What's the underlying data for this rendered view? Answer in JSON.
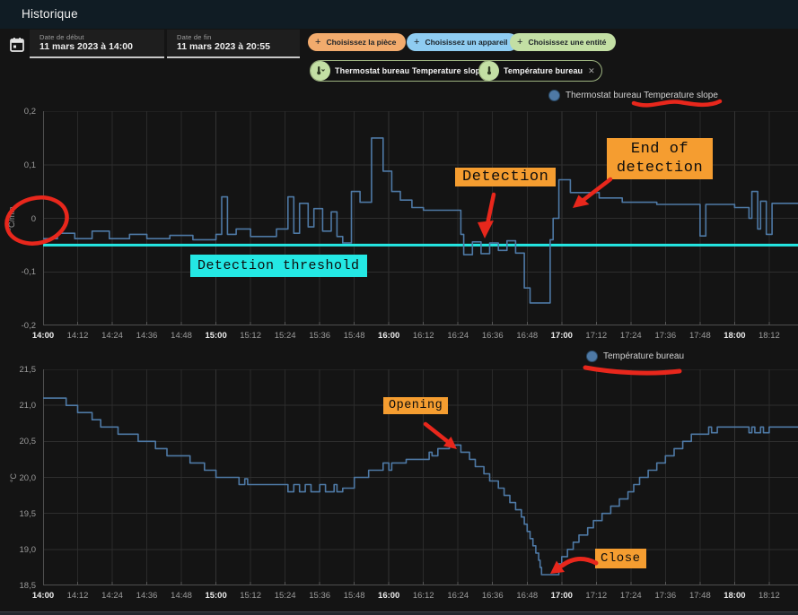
{
  "header": {
    "title": "Historique"
  },
  "toolbar": {
    "date_start": {
      "label": "Date de début",
      "value": "11 mars 2023 à 14:00"
    },
    "date_end": {
      "label": "Date de fin",
      "value": "11 mars 2023 à 20:55"
    },
    "filter_chips": [
      {
        "label": "Choisissez la pièce"
      },
      {
        "label": "Choisissez un appareil"
      },
      {
        "label": "Choisissez une entité"
      }
    ],
    "entity_chips": [
      {
        "label": "Thermostat bureau Temperature slope",
        "icon": "thermostat-icon"
      },
      {
        "label": "Température bureau",
        "icon": "thermometer-icon"
      }
    ]
  },
  "icons": {
    "plus_glyph": "+",
    "close_glyph": "✕"
  },
  "colors": {
    "accent_orange": "#f59d30",
    "accent_cyan": "#24e8e4",
    "accent_red": "#e8271c",
    "series_blue": "#4e79a5",
    "chip_room": "#f2ab6d",
    "chip_device": "#8fccf1",
    "chip_entity": "#c3dfa4"
  },
  "annotations": {
    "detection": "Detection",
    "end_of_detection": "End of detection",
    "detection_threshold": "Detection threshold",
    "opening": "Opening",
    "close": "Close"
  },
  "chart_data": [
    {
      "type": "line",
      "step": true,
      "legend_position": "top-right",
      "grid": true,
      "ylabel": "°C/min",
      "ylim": [
        -0.2,
        0.2
      ],
      "ytick_values": [
        0.2,
        0.1,
        0,
        -0.1,
        -0.2
      ],
      "ytick_labels": [
        "0,2",
        "0,1",
        "0",
        "-0,1",
        "-0,2"
      ],
      "x_minutes_range": [
        840,
        1102
      ],
      "xtick_step_minutes": 12,
      "xticks": [
        "14:00",
        "14:12",
        "14:24",
        "14:36",
        "14:48",
        "15:00",
        "15:12",
        "15:24",
        "15:36",
        "15:48",
        "16:00",
        "16:12",
        "16:24",
        "16:36",
        "16:48",
        "17:00",
        "17:12",
        "17:24",
        "17:36",
        "17:48",
        "18:00",
        "18:12"
      ],
      "threshold": -0.05,
      "threshold_color": "#24e8e4",
      "series": [
        {
          "name": "Thermostat bureau Temperature slope",
          "color": "#4e79a5",
          "points": [
            [
              840,
              -0.038
            ],
            [
              845,
              -0.028
            ],
            [
              851,
              -0.038
            ],
            [
              857,
              -0.024
            ],
            [
              863,
              -0.038
            ],
            [
              870,
              -0.03
            ],
            [
              876,
              -0.038
            ],
            [
              884,
              -0.032
            ],
            [
              892,
              -0.04
            ],
            [
              900,
              -0.03
            ],
            [
              902,
              0.04
            ],
            [
              904,
              -0.03
            ],
            [
              907,
              -0.02
            ],
            [
              912,
              -0.034
            ],
            [
              921,
              -0.02
            ],
            [
              925,
              0.04
            ],
            [
              927,
              -0.028
            ],
            [
              929,
              0.028
            ],
            [
              932,
              -0.016
            ],
            [
              934,
              0.018
            ],
            [
              937,
              -0.024
            ],
            [
              940,
              0.012
            ],
            [
              942,
              -0.034
            ],
            [
              944,
              -0.046
            ],
            [
              947,
              0.05
            ],
            [
              950,
              0.03
            ],
            [
              954,
              0.15
            ],
            [
              958,
              0.088
            ],
            [
              961,
              0.05
            ],
            [
              964,
              0.034
            ],
            [
              968,
              0.02
            ],
            [
              972,
              0.015
            ],
            [
              985,
              -0.03
            ],
            [
              986,
              -0.068
            ],
            [
              989,
              -0.044
            ],
            [
              992,
              -0.066
            ],
            [
              995,
              -0.046
            ],
            [
              998,
              -0.06
            ],
            [
              1001,
              -0.042
            ],
            [
              1004,
              -0.065
            ],
            [
              1007,
              -0.13
            ],
            [
              1009,
              -0.158
            ],
            [
              1016,
              -0.04
            ],
            [
              1017,
              0
            ],
            [
              1019,
              0.072
            ],
            [
              1023,
              0.048
            ],
            [
              1033,
              0.038
            ],
            [
              1041,
              0.03
            ],
            [
              1053,
              0.026
            ],
            [
              1068,
              -0.033
            ],
            [
              1070,
              0.026
            ],
            [
              1080,
              0.02
            ],
            [
              1085,
              0
            ],
            [
              1086,
              0.05
            ],
            [
              1088,
              -0.02
            ],
            [
              1089,
              0.032
            ],
            [
              1091,
              -0.03
            ],
            [
              1093,
              0.028
            ],
            [
              1102,
              0.028
            ]
          ]
        }
      ]
    },
    {
      "type": "line",
      "step": true,
      "legend_position": "top-right",
      "grid": true,
      "ylabel": "°C",
      "ylim": [
        18.5,
        21.5
      ],
      "ytick_values": [
        21.5,
        21.0,
        20.5,
        20.0,
        19.5,
        19.0,
        18.5
      ],
      "ytick_labels": [
        "21,5",
        "21,0",
        "20,5",
        "20,0",
        "19,5",
        "19,0",
        "18,5"
      ],
      "x_minutes_range": [
        840,
        1102
      ],
      "xtick_step_minutes": 12,
      "xticks": [
        "14:00",
        "14:12",
        "14:24",
        "14:36",
        "14:48",
        "15:00",
        "15:12",
        "15:24",
        "15:36",
        "15:48",
        "16:00",
        "16:12",
        "16:24",
        "16:36",
        "16:48",
        "17:00",
        "17:12",
        "17:24",
        "17:36",
        "17:48",
        "18:00",
        "18:12"
      ],
      "series": [
        {
          "name": "Température bureau",
          "color": "#4e79a5",
          "points": [
            [
              840,
              21.1
            ],
            [
              848,
              21.0
            ],
            [
              852,
              20.9
            ],
            [
              857,
              20.8
            ],
            [
              860,
              20.7
            ],
            [
              866,
              20.6
            ],
            [
              873,
              20.5
            ],
            [
              879,
              20.4
            ],
            [
              883,
              20.3
            ],
            [
              891,
              20.2
            ],
            [
              896,
              20.1
            ],
            [
              900,
              20.0
            ],
            [
              908,
              19.9
            ],
            [
              910,
              19.98
            ],
            [
              911,
              19.9
            ],
            [
              925,
              19.8
            ],
            [
              927,
              19.9
            ],
            [
              929,
              19.8
            ],
            [
              931,
              19.9
            ],
            [
              933,
              19.8
            ],
            [
              936,
              19.9
            ],
            [
              938,
              19.8
            ],
            [
              941,
              19.9
            ],
            [
              942,
              19.8
            ],
            [
              944,
              19.85
            ],
            [
              948,
              20.0
            ],
            [
              953,
              20.1
            ],
            [
              958,
              20.2
            ],
            [
              960,
              20.1
            ],
            [
              961,
              20.2
            ],
            [
              966,
              20.25
            ],
            [
              974,
              20.35
            ],
            [
              975,
              20.3
            ],
            [
              977,
              20.4
            ],
            [
              981,
              20.45
            ],
            [
              985,
              20.35
            ],
            [
              988,
              20.25
            ],
            [
              990,
              20.15
            ],
            [
              993,
              20.05
            ],
            [
              995,
              19.95
            ],
            [
              998,
              19.85
            ],
            [
              1000,
              19.75
            ],
            [
              1002,
              19.65
            ],
            [
              1004,
              19.55
            ],
            [
              1006,
              19.45
            ],
            [
              1007,
              19.35
            ],
            [
              1008,
              19.25
            ],
            [
              1009,
              19.15
            ],
            [
              1010,
              19.05
            ],
            [
              1011,
              18.95
            ],
            [
              1012,
              18.85
            ],
            [
              1012.5,
              18.75
            ],
            [
              1013,
              18.65
            ],
            [
              1019,
              18.8
            ],
            [
              1020,
              18.9
            ],
            [
              1022,
              19.0
            ],
            [
              1024,
              19.1
            ],
            [
              1026,
              19.2
            ],
            [
              1029,
              19.3
            ],
            [
              1031,
              19.4
            ],
            [
              1034,
              19.5
            ],
            [
              1037,
              19.6
            ],
            [
              1040,
              19.7
            ],
            [
              1043,
              19.8
            ],
            [
              1045,
              19.9
            ],
            [
              1047,
              20.0
            ],
            [
              1050,
              20.1
            ],
            [
              1053,
              20.2
            ],
            [
              1056,
              20.3
            ],
            [
              1059,
              20.4
            ],
            [
              1062,
              20.5
            ],
            [
              1065,
              20.6
            ],
            [
              1071,
              20.7
            ],
            [
              1072,
              20.62
            ],
            [
              1074,
              20.7
            ],
            [
              1085,
              20.62
            ],
            [
              1086,
              20.7
            ],
            [
              1087,
              20.62
            ],
            [
              1089,
              20.7
            ],
            [
              1090,
              20.62
            ],
            [
              1092,
              20.7
            ],
            [
              1102,
              20.7
            ]
          ]
        }
      ]
    }
  ]
}
